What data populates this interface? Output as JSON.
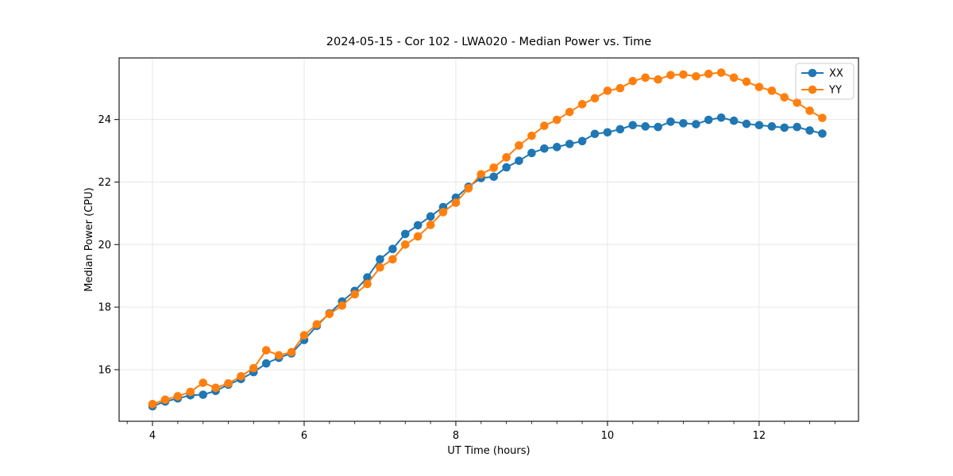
{
  "figure": {
    "title": "2024-05-15 - Cor 102 - LWA020 - Median Power vs. Time",
    "xlabel": "UT Time (hours)",
    "ylabel": "Median Power (CPU)"
  },
  "legend": {
    "entries": [
      {
        "label": "XX",
        "color": "#1f77b4"
      },
      {
        "label": "YY",
        "color": "#ff7f0e"
      }
    ]
  },
  "colors": {
    "series_xx": "#1f77b4",
    "series_yy": "#ff7f0e",
    "grid": "#e7e7e7",
    "spine": "#1a1a1a",
    "legend_border": "#cccccc"
  },
  "chart_data": {
    "type": "line",
    "title": "2024-05-15 - Cor 102 - LWA020 - Median Power vs. Time",
    "xlabel": "UT Time (hours)",
    "ylabel": "Median Power (CPU)",
    "xlim": [
      3.56,
      13.31
    ],
    "ylim": [
      14.35,
      25.97
    ],
    "x_ticks": [
      4,
      6,
      8,
      10,
      12
    ],
    "y_ticks": [
      16,
      18,
      20,
      22,
      24
    ],
    "x_minor_tick_step": 0.3333,
    "grid": true,
    "legend_position": "upper right",
    "marker": "circle",
    "x": [
      4.0,
      4.167,
      4.333,
      4.5,
      4.667,
      4.833,
      5.0,
      5.167,
      5.333,
      5.5,
      5.667,
      5.833,
      6.0,
      6.167,
      6.333,
      6.5,
      6.667,
      6.833,
      7.0,
      7.167,
      7.333,
      7.5,
      7.667,
      7.833,
      8.0,
      8.167,
      8.333,
      8.5,
      8.667,
      8.833,
      9.0,
      9.167,
      9.333,
      9.5,
      9.667,
      9.833,
      10.0,
      10.167,
      10.333,
      10.5,
      10.667,
      10.833,
      11.0,
      11.167,
      11.333,
      11.5,
      11.667,
      11.833,
      12.0,
      12.167,
      12.333,
      12.5,
      12.667,
      12.833
    ],
    "series": [
      {
        "name": "XX",
        "color": "#1f77b4",
        "values": [
          14.83,
          14.98,
          15.08,
          15.18,
          15.2,
          15.32,
          15.52,
          15.7,
          15.92,
          16.2,
          16.38,
          16.52,
          16.95,
          17.4,
          17.8,
          18.18,
          18.52,
          18.95,
          19.53,
          19.86,
          20.34,
          20.62,
          20.9,
          21.2,
          21.5,
          21.85,
          22.13,
          22.17,
          22.47,
          22.68,
          22.93,
          23.07,
          23.12,
          23.22,
          23.31,
          23.54,
          23.59,
          23.69,
          23.82,
          23.78,
          23.76,
          23.93,
          23.88,
          23.85,
          23.99,
          24.06,
          23.96,
          23.86,
          23.82,
          23.78,
          23.74,
          23.76,
          23.65,
          23.55
        ]
      },
      {
        "name": "YY",
        "color": "#ff7f0e",
        "values": [
          14.9,
          15.04,
          15.15,
          15.29,
          15.58,
          15.42,
          15.56,
          15.79,
          16.05,
          16.62,
          16.46,
          16.56,
          17.1,
          17.45,
          17.78,
          18.05,
          18.41,
          18.74,
          19.27,
          19.53,
          20.0,
          20.26,
          20.63,
          21.04,
          21.34,
          21.8,
          22.25,
          22.46,
          22.79,
          23.17,
          23.48,
          23.8,
          23.99,
          24.24,
          24.49,
          24.68,
          24.92,
          25.0,
          25.23,
          25.34,
          25.28,
          25.42,
          25.44,
          25.38,
          25.46,
          25.5,
          25.34,
          25.21,
          25.04,
          24.92,
          24.71,
          24.54,
          24.28,
          24.05
        ]
      }
    ]
  }
}
